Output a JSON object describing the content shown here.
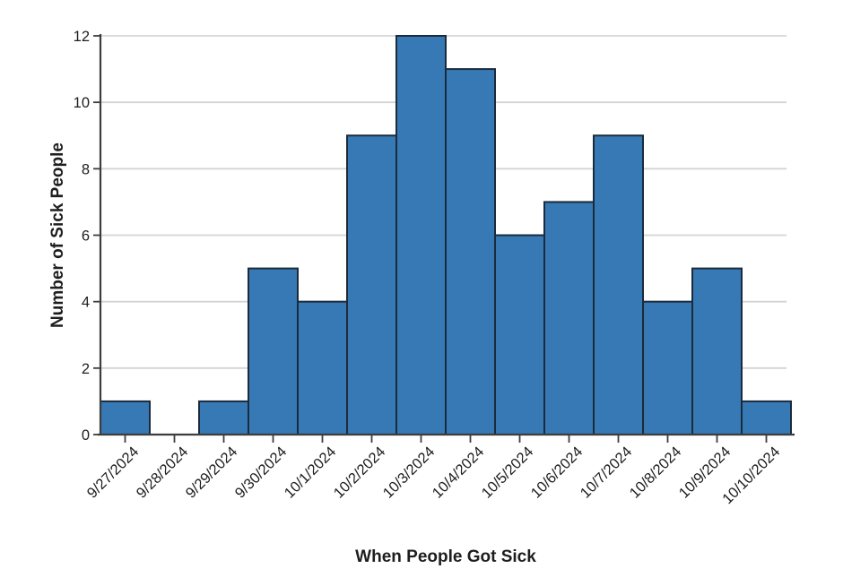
{
  "chart_data": {
    "type": "bar",
    "subtype": "histogram-epicurve",
    "title": "",
    "xlabel": "When People Got Sick",
    "ylabel": "Number of Sick People",
    "categories": [
      "9/27/2024",
      "9/28/2024",
      "9/29/2024",
      "9/30/2024",
      "10/1/2024",
      "10/2/2024",
      "10/3/2024",
      "10/4/2024",
      "10/5/2024",
      "10/6/2024",
      "10/7/2024",
      "10/8/2024",
      "10/9/2024",
      "10/10/2024"
    ],
    "values": [
      1,
      0,
      1,
      5,
      4,
      9,
      12,
      11,
      6,
      7,
      9,
      4,
      5,
      1
    ],
    "ylim": [
      0,
      12
    ],
    "yticks": [
      0,
      2,
      4,
      6,
      8,
      10,
      12
    ],
    "grid": "horizontal-only",
    "legend_position": "none",
    "bar_gap": 0,
    "x_tick_rotation_deg": -45
  },
  "colors": {
    "bar_fill": "#3679B5",
    "bar_stroke": "#1B2B3C",
    "gridline": "#D4D4D4",
    "axis": "#3D3D3D",
    "tick": "#3D3D3D",
    "text": "#1E1E1E",
    "background": "#FFFFFF"
  }
}
